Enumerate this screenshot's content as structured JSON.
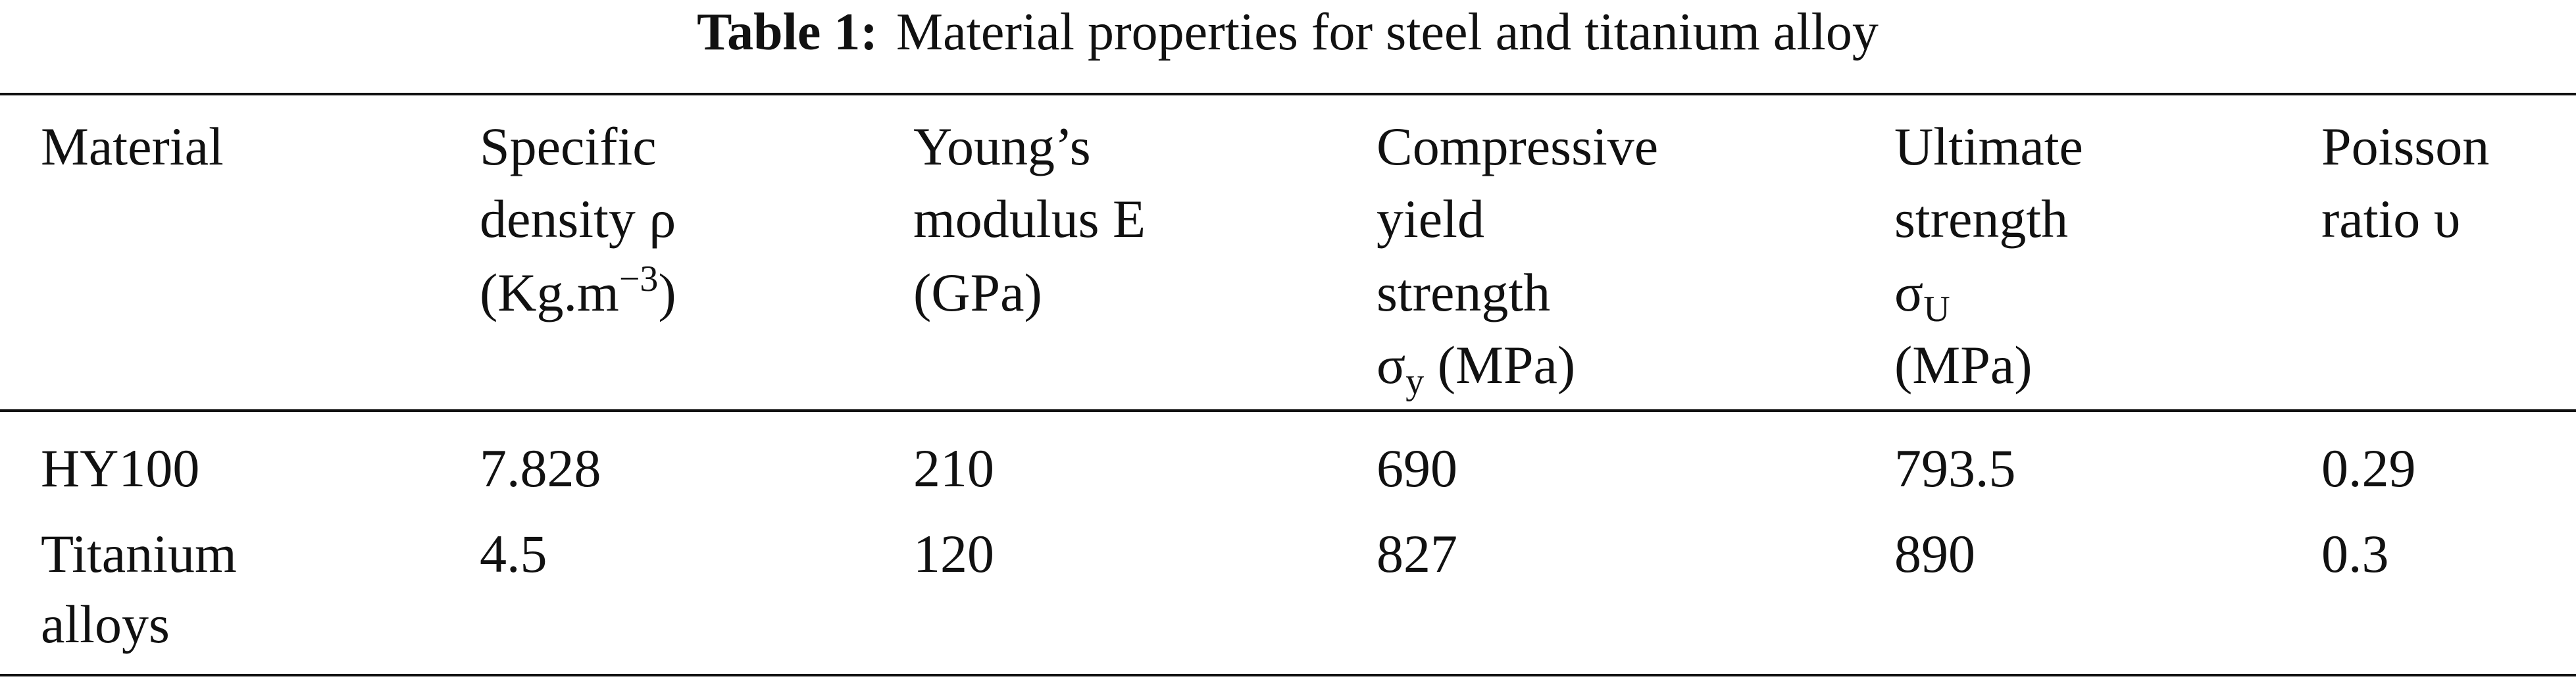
{
  "caption": {
    "label": "Table 1:",
    "text": "Material properties for steel and titanium alloy"
  },
  "table": {
    "header": [
      [
        [
          "Material"
        ]
      ],
      [
        [
          "Specific"
        ],
        [
          "density ρ"
        ],
        [
          "(Kg.m",
          {
            "sup": "−3"
          },
          ")"
        ]
      ],
      [
        [
          "Young’s"
        ],
        [
          "modulus E"
        ],
        [
          "(GPa)"
        ]
      ],
      [
        [
          "Compressive"
        ],
        [
          "yield"
        ],
        [
          "strength"
        ],
        [
          "σ",
          {
            "sub": "y"
          },
          " (MPa)"
        ]
      ],
      [
        [
          "Ultimate"
        ],
        [
          "strength"
        ],
        [
          "σ",
          {
            "sub": "U"
          }
        ],
        [
          "(MPa)"
        ]
      ],
      [
        [
          "Poisson"
        ],
        [
          "ratio υ"
        ]
      ]
    ],
    "rows": [
      [
        [
          "HY100"
        ],
        [
          "7.828"
        ],
        [
          "210"
        ],
        [
          "690"
        ],
        [
          "793.5"
        ],
        [
          "0.29"
        ]
      ],
      [
        [
          "Titanium",
          "alloys"
        ],
        [
          "4.5"
        ],
        [
          "120"
        ],
        [
          "827"
        ],
        [
          "890"
        ],
        [
          "0.3"
        ]
      ]
    ]
  }
}
